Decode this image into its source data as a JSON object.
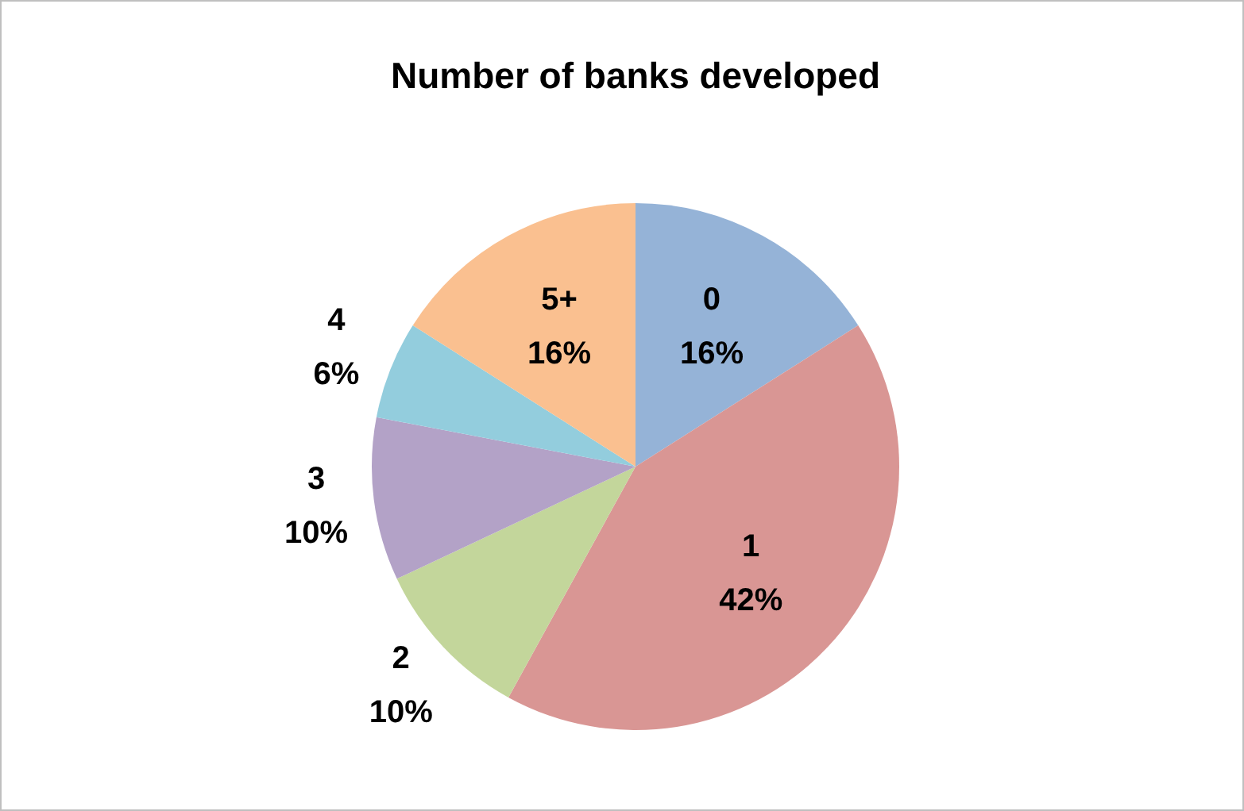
{
  "chart_data": {
    "type": "pie",
    "title": "Number of banks developed",
    "categories": [
      "0",
      "1",
      "2",
      "3",
      "4",
      "5+"
    ],
    "values": [
      16,
      42,
      10,
      10,
      6,
      16
    ],
    "value_labels": [
      "16%",
      "42%",
      "10%",
      "10%",
      "6%",
      "16%"
    ],
    "colors": [
      "#95b3d7",
      "#d99694",
      "#c3d69b",
      "#b3a2c7",
      "#93cddd",
      "#fac090"
    ],
    "legend": false
  }
}
